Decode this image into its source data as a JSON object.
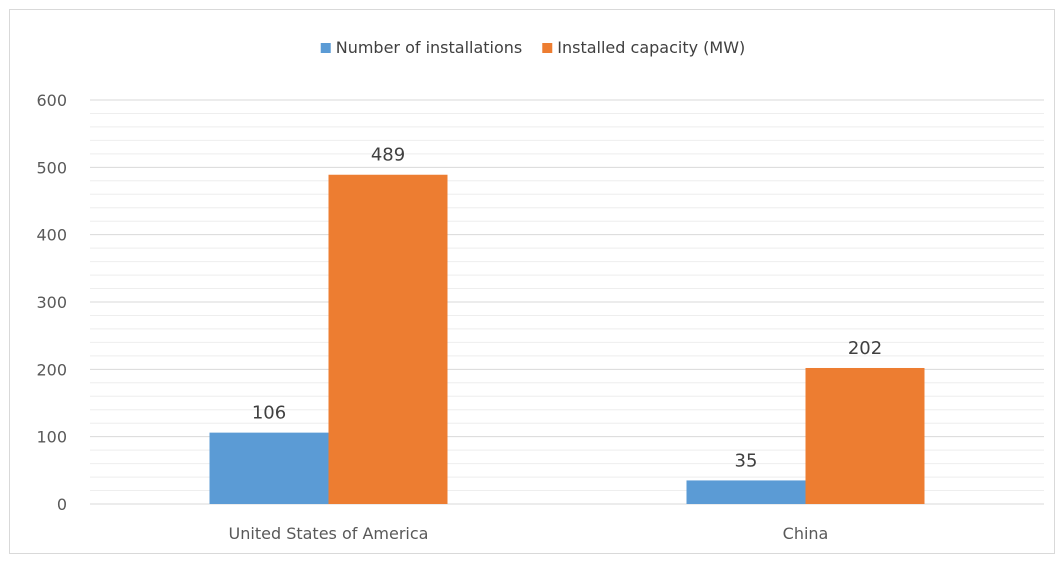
{
  "chart_data": {
    "type": "bar",
    "categories": [
      "United States of America",
      "China"
    ],
    "series": [
      {
        "name": "Number of installations",
        "values": [
          106,
          35
        ],
        "color": "#5b9bd5"
      },
      {
        "name": "Installed capacity (MW)",
        "values": [
          489,
          202
        ],
        "color": "#ed7d31"
      }
    ],
    "ylim": [
      0,
      600
    ],
    "yticks": [
      0,
      100,
      200,
      300,
      400,
      500,
      600
    ],
    "minor_gridlines_per_major": 5,
    "grid": true,
    "legend": "top-center",
    "data_labels": true,
    "gridline_color": "#d9d9d9",
    "minor_gridline_color": "#eeeeee",
    "text_color": "#595959"
  }
}
